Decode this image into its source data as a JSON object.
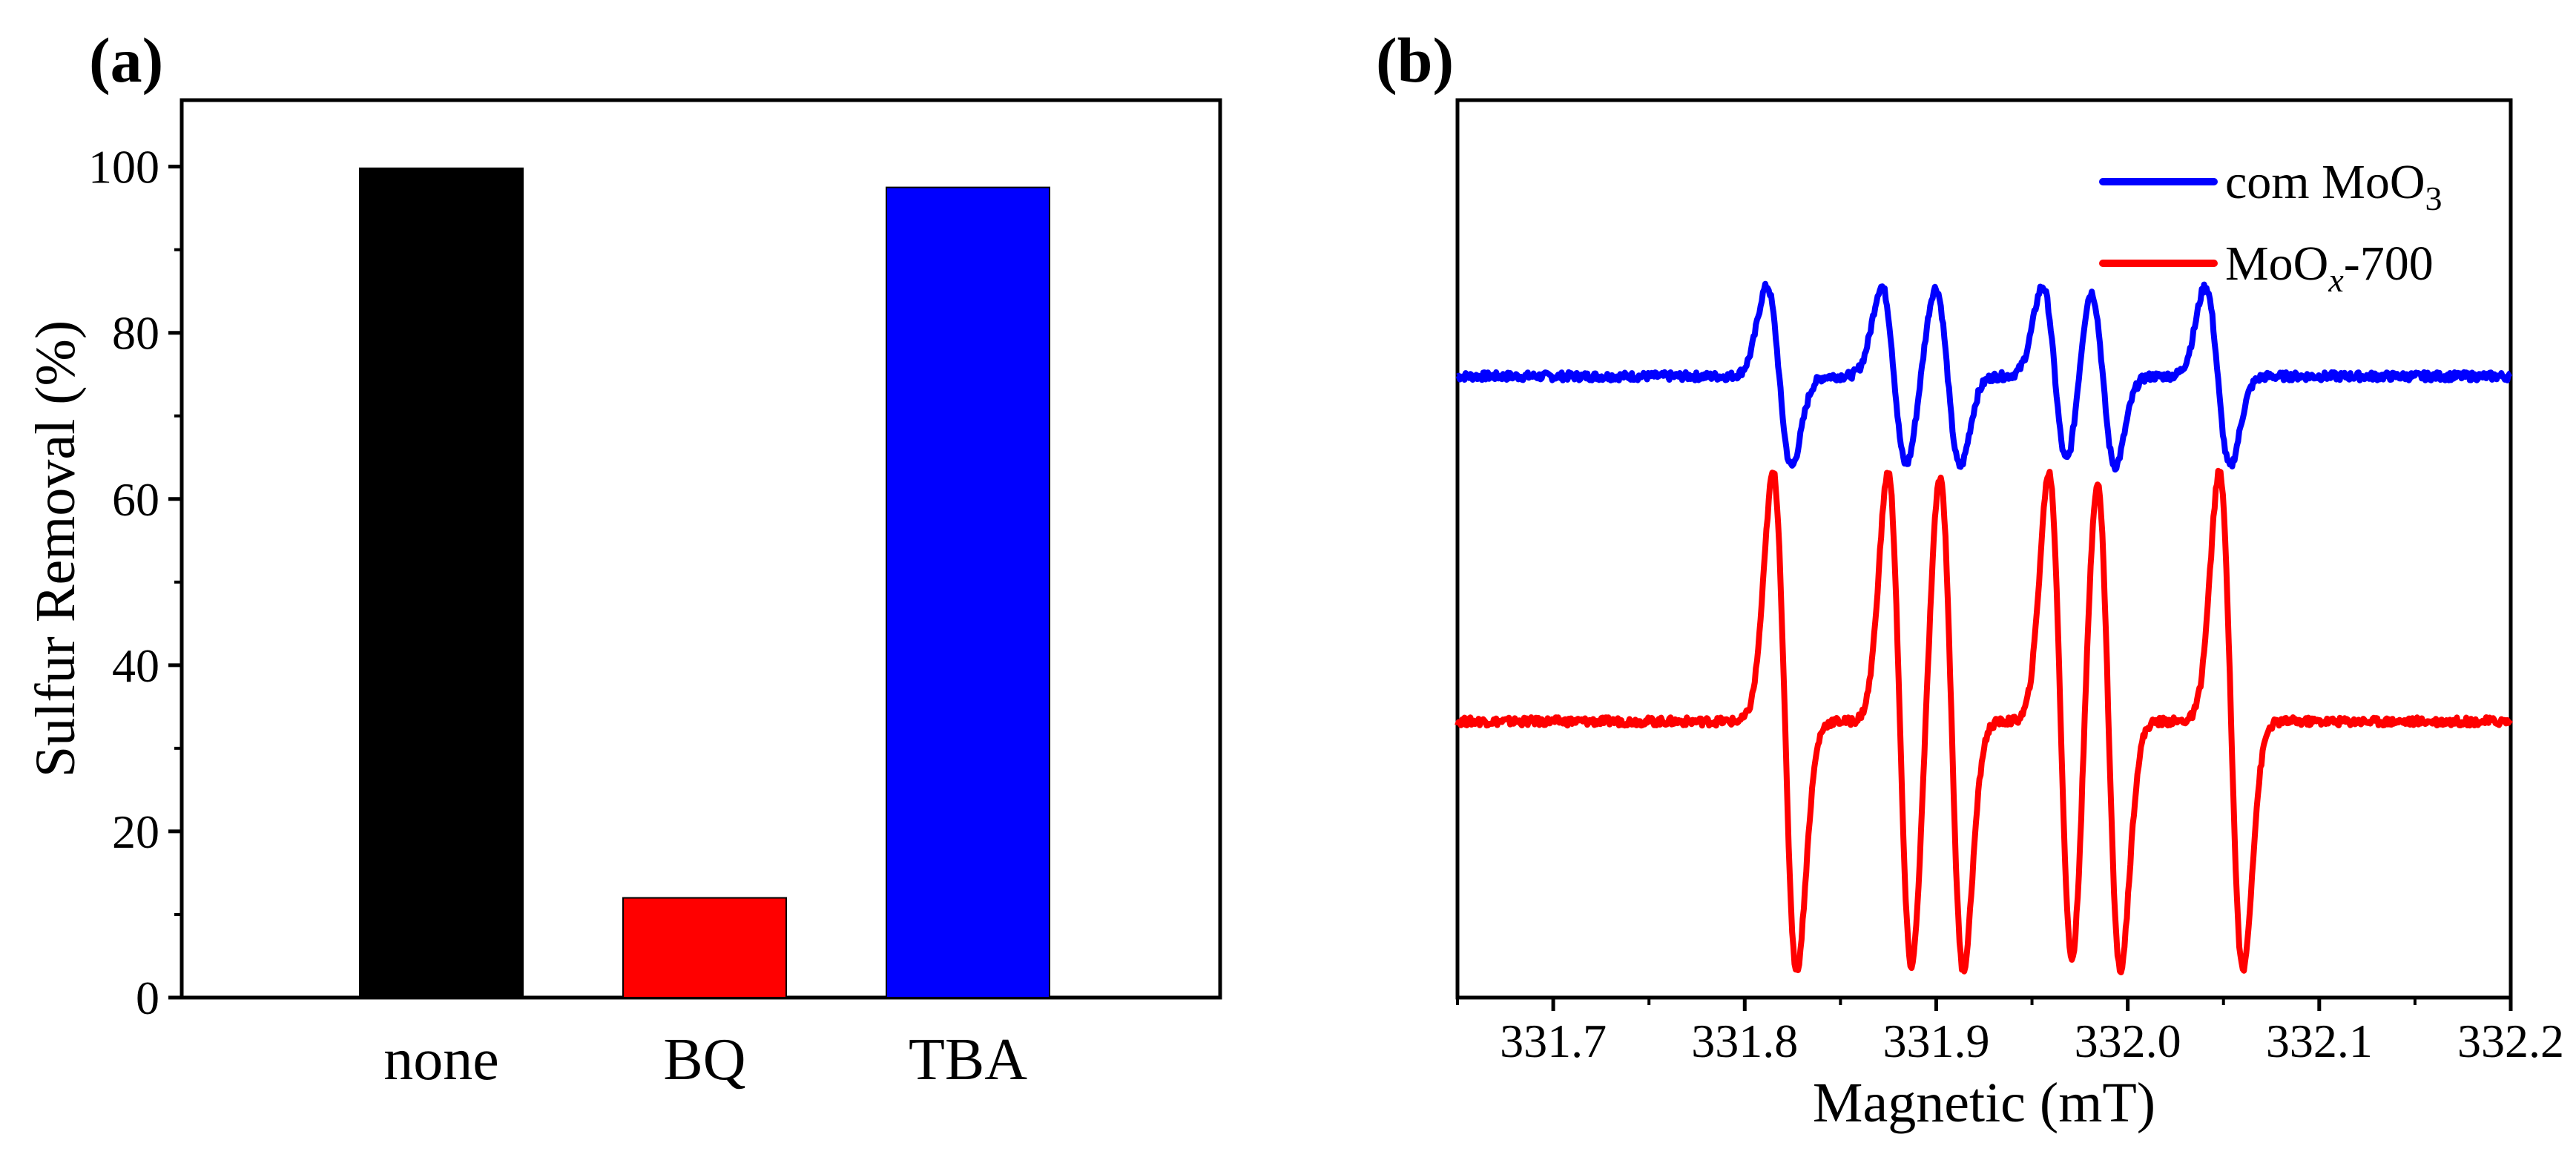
{
  "panels": {
    "a": {
      "label": "(a)",
      "chart_data": {
        "type": "bar",
        "title": "",
        "xlabel": "",
        "ylabel": "Sulfur Removal (%)",
        "categories": [
          "none",
          "BQ",
          "TBA"
        ],
        "values": [
          99.8,
          12.0,
          97.5
        ],
        "colors": [
          "#000000",
          "#ff0000",
          "#0000ff"
        ],
        "ylim": [
          0,
          108
        ],
        "yticks": [
          0,
          20,
          40,
          60,
          80,
          100
        ],
        "grid": false
      }
    },
    "b": {
      "label": "(b)",
      "chart_data": {
        "type": "line",
        "title": "",
        "xlabel": "Magnetic (mT)",
        "ylabel": "",
        "xlim": [
          331.65,
          332.2
        ],
        "xticks": [
          331.7,
          331.8,
          331.9,
          332.0,
          332.1,
          332.2
        ],
        "xtick_labels": [
          "331.7",
          "331.8",
          "331.9",
          "332.0",
          "332.1",
          "332.2"
        ],
        "ylim": [
          -1,
          12
        ],
        "yticks": [],
        "legend_position": "top-right",
        "grid": false,
        "series": [
          {
            "name": "com MoO3",
            "legend_base": "com MoO",
            "legend_sub": "3",
            "legend_suffix": "",
            "color": "#0000ff",
            "baseline": 8.0,
            "line_centers": [
              331.818,
              331.878,
              331.906,
              331.962,
              331.987,
              332.047
            ],
            "line_amplitude": 1.3,
            "line_width": 0.0065
          },
          {
            "name": "MoOx-700",
            "legend_base": "MoO",
            "legend_sub": "x",
            "legend_suffix": "-700",
            "color": "#ff0000",
            "baseline": 3.0,
            "line_centers": [
              331.821,
              331.881,
              331.908,
              331.965,
              331.99,
              332.054
            ],
            "line_amplitude": 3.6,
            "line_width": 0.0062
          }
        ]
      }
    }
  }
}
